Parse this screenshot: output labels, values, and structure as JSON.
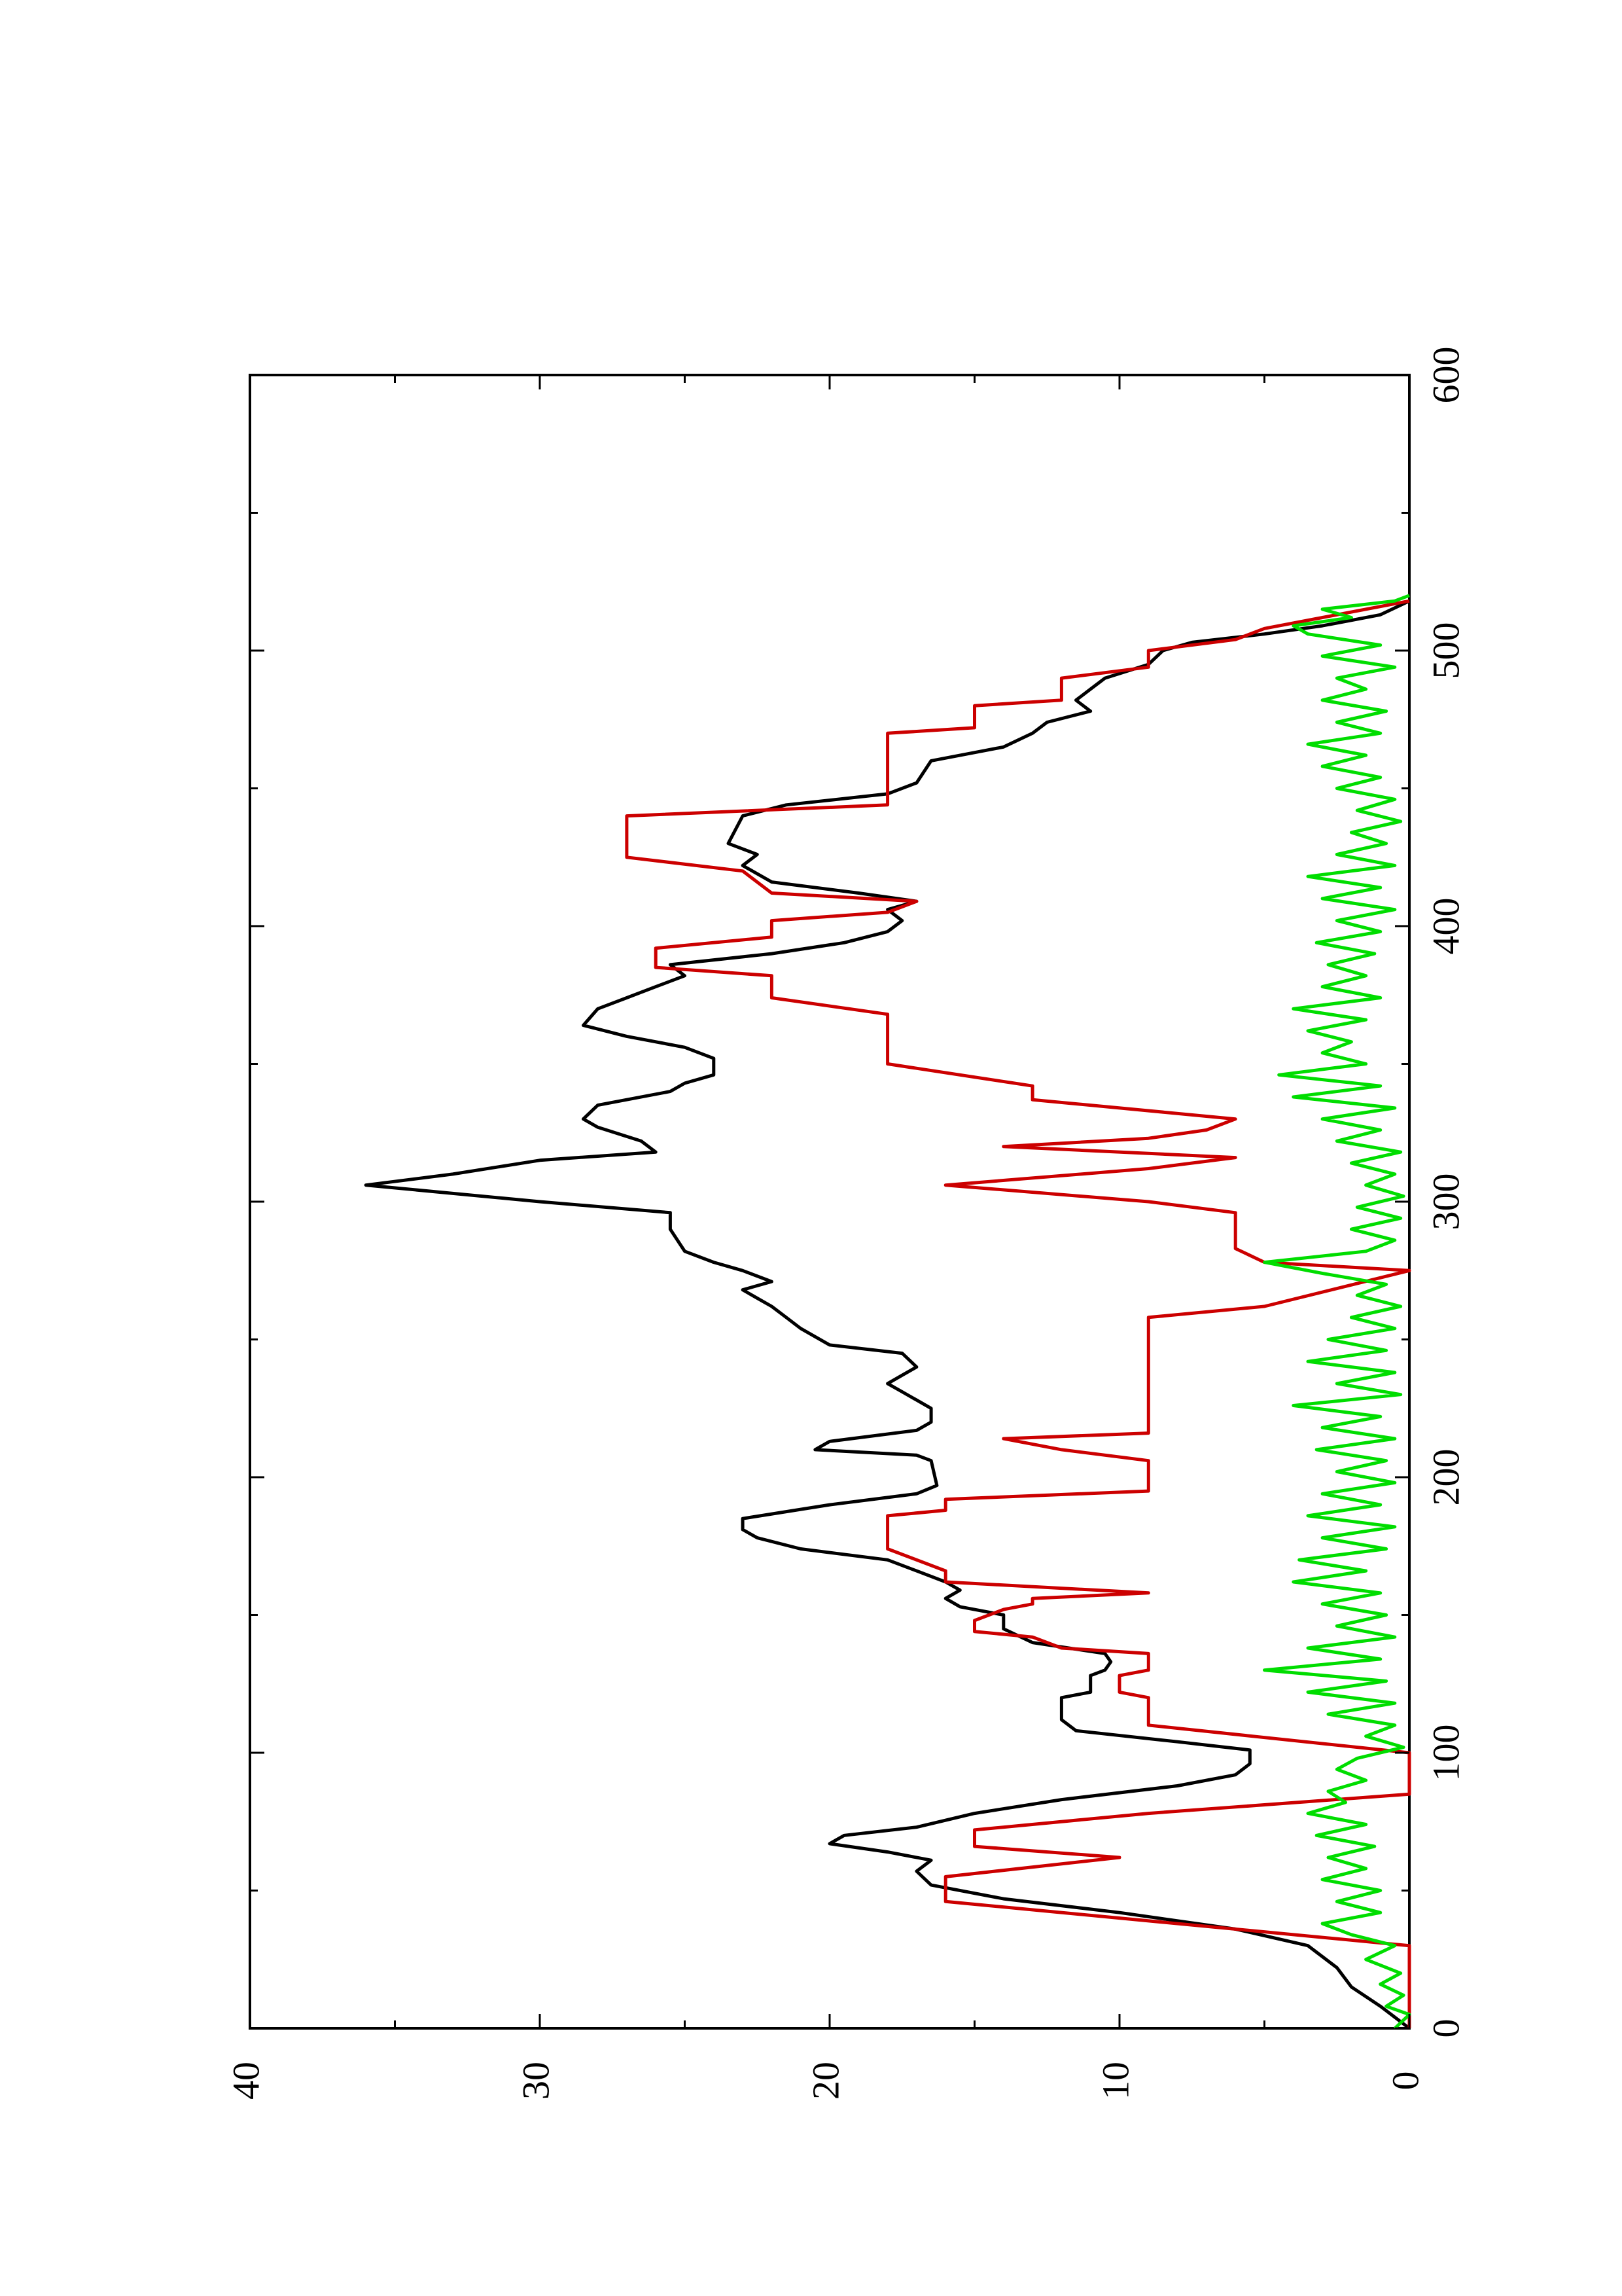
{
  "chart_data": {
    "type": "line",
    "orientation": "rotated-90-ccw",
    "title": "",
    "xlabel": "",
    "ylabel": "",
    "xlim": [
      0,
      600
    ],
    "ylim": [
      0,
      40
    ],
    "x_ticks": [
      0,
      100,
      200,
      300,
      400,
      500,
      600
    ],
    "x_minor_ticks": [
      50,
      150,
      250,
      350,
      450,
      550
    ],
    "y_ticks": [
      0,
      10,
      20,
      30,
      40
    ],
    "y_minor_ticks": [
      5,
      15,
      25,
      35
    ],
    "grid": false,
    "legend": "none",
    "series": [
      {
        "color": "#000000",
        "points": [
          [
            0,
            0
          ],
          [
            8,
            1
          ],
          [
            15,
            2
          ],
          [
            22,
            2.5
          ],
          [
            30,
            3.5
          ],
          [
            36,
            6
          ],
          [
            42,
            10
          ],
          [
            47,
            14
          ],
          [
            52,
            16.5
          ],
          [
            57,
            17
          ],
          [
            61,
            16.5
          ],
          [
            64,
            18
          ],
          [
            67,
            20
          ],
          [
            70,
            19.5
          ],
          [
            73,
            17
          ],
          [
            78,
            15
          ],
          [
            83,
            12
          ],
          [
            88,
            8
          ],
          [
            92,
            6
          ],
          [
            96,
            5.5
          ],
          [
            101,
            5.5
          ],
          [
            104,
            8
          ],
          [
            108,
            11.5
          ],
          [
            112,
            12
          ],
          [
            120,
            12
          ],
          [
            122,
            11
          ],
          [
            128,
            11
          ],
          [
            130,
            10.5
          ],
          [
            133,
            10.3
          ],
          [
            136,
            10.5
          ],
          [
            140,
            13
          ],
          [
            145,
            14
          ],
          [
            150,
            14
          ],
          [
            153,
            15.5
          ],
          [
            156,
            16
          ],
          [
            159,
            15.5
          ],
          [
            162,
            16
          ],
          [
            166,
            17
          ],
          [
            170,
            18
          ],
          [
            174,
            21
          ],
          [
            178,
            22.5
          ],
          [
            181,
            23
          ],
          [
            185,
            23
          ],
          [
            190,
            20
          ],
          [
            194,
            17
          ],
          [
            197,
            16.3
          ],
          [
            206,
            16.5
          ],
          [
            208,
            17
          ],
          [
            210,
            20.5
          ],
          [
            213,
            20
          ],
          [
            217,
            17
          ],
          [
            220,
            16.5
          ],
          [
            225,
            16.5
          ],
          [
            228,
            17
          ],
          [
            231,
            17.5
          ],
          [
            234,
            18
          ],
          [
            237,
            17.5
          ],
          [
            240,
            17
          ],
          [
            245,
            17.5
          ],
          [
            248,
            20
          ],
          [
            254,
            21
          ],
          [
            258,
            21.5
          ],
          [
            262,
            22
          ],
          [
            265,
            22.5
          ],
          [
            268,
            23
          ],
          [
            271,
            22
          ],
          [
            275,
            23
          ],
          [
            278,
            24
          ],
          [
            282,
            25
          ],
          [
            290,
            25.5
          ],
          [
            296,
            25.5
          ],
          [
            300,
            30
          ],
          [
            303,
            33
          ],
          [
            306,
            36
          ],
          [
            310,
            33
          ],
          [
            315,
            30
          ],
          [
            318,
            26
          ],
          [
            322,
            26.5
          ],
          [
            327,
            28
          ],
          [
            330,
            28.5
          ],
          [
            335,
            28
          ],
          [
            340,
            25.5
          ],
          [
            343,
            25
          ],
          [
            346,
            24
          ],
          [
            352,
            24
          ],
          [
            356,
            25
          ],
          [
            360,
            27
          ],
          [
            364,
            28.5
          ],
          [
            370,
            28
          ],
          [
            374,
            27
          ],
          [
            378,
            26
          ],
          [
            382,
            25
          ],
          [
            386,
            25.5
          ],
          [
            390,
            22
          ],
          [
            394,
            19.5
          ],
          [
            398,
            18
          ],
          [
            402,
            17.5
          ],
          [
            406,
            18
          ],
          [
            409,
            17
          ],
          [
            412,
            19
          ],
          [
            416,
            22
          ],
          [
            422,
            23
          ],
          [
            426,
            22.5
          ],
          [
            430,
            23.5
          ],
          [
            440,
            23
          ],
          [
            444,
            21.5
          ],
          [
            448,
            18
          ],
          [
            452,
            17
          ],
          [
            460,
            16.5
          ],
          [
            465,
            14
          ],
          [
            470,
            13
          ],
          [
            474,
            12.5
          ],
          [
            478,
            11
          ],
          [
            482,
            11.5
          ],
          [
            486,
            11
          ],
          [
            490,
            10.5
          ],
          [
            495,
            9
          ],
          [
            500,
            8.5
          ],
          [
            503,
            7.5
          ],
          [
            506,
            5
          ],
          [
            509,
            3
          ],
          [
            513,
            1
          ],
          [
            518,
            0
          ]
        ]
      },
      {
        "color": "#cc0000",
        "points": [
          [
            0,
            0
          ],
          [
            30,
            0
          ],
          [
            40,
            10
          ],
          [
            46,
            16
          ],
          [
            55,
            16
          ],
          [
            62,
            10
          ],
          [
            66,
            15
          ],
          [
            72,
            15
          ],
          [
            78,
            9
          ],
          [
            85,
            0
          ],
          [
            100,
            0
          ],
          [
            110,
            9
          ],
          [
            120,
            9
          ],
          [
            122,
            10
          ],
          [
            128,
            10
          ],
          [
            130,
            9
          ],
          [
            136,
            9
          ],
          [
            138,
            12
          ],
          [
            142,
            13
          ],
          [
            144,
            15
          ],
          [
            148,
            15
          ],
          [
            152,
            14
          ],
          [
            154,
            13
          ],
          [
            156,
            13
          ],
          [
            158,
            9
          ],
          [
            162,
            16
          ],
          [
            166,
            16
          ],
          [
            174,
            18
          ],
          [
            186,
            18
          ],
          [
            188,
            16
          ],
          [
            192,
            16
          ],
          [
            195,
            9
          ],
          [
            206,
            9
          ],
          [
            210,
            12
          ],
          [
            214,
            14
          ],
          [
            216,
            9
          ],
          [
            246,
            9
          ],
          [
            258,
            9
          ],
          [
            262,
            5
          ],
          [
            275,
            0
          ],
          [
            278,
            5
          ],
          [
            283,
            6
          ],
          [
            296,
            6
          ],
          [
            300,
            9
          ],
          [
            306,
            16
          ],
          [
            312,
            9
          ],
          [
            316,
            6
          ],
          [
            320,
            14
          ],
          [
            323,
            9
          ],
          [
            326,
            7
          ],
          [
            330,
            6
          ],
          [
            337,
            13
          ],
          [
            342,
            13
          ],
          [
            350,
            18
          ],
          [
            368,
            18
          ],
          [
            374,
            22
          ],
          [
            382,
            22
          ],
          [
            385,
            26
          ],
          [
            392,
            26
          ],
          [
            396,
            22
          ],
          [
            402,
            22
          ],
          [
            405,
            18
          ],
          [
            409,
            17
          ],
          [
            412,
            22
          ],
          [
            420,
            23
          ],
          [
            425,
            27
          ],
          [
            440,
            27
          ],
          [
            444,
            18
          ],
          [
            470,
            18
          ],
          [
            472,
            15
          ],
          [
            480,
            15
          ],
          [
            482,
            12
          ],
          [
            490,
            12
          ],
          [
            494,
            9
          ],
          [
            500,
            9
          ],
          [
            504,
            6
          ],
          [
            508,
            5
          ],
          [
            512,
            3
          ],
          [
            518,
            0
          ]
        ]
      },
      {
        "color": "#00dd00",
        "points": [
          [
            0,
            0.5
          ],
          [
            5,
            0
          ],
          [
            8,
            0.8
          ],
          [
            12,
            0.2
          ],
          [
            16,
            1
          ],
          [
            20,
            0.3
          ],
          [
            25,
            1.5
          ],
          [
            30,
            0.5
          ],
          [
            34,
            2
          ],
          [
            38,
            3
          ],
          [
            42,
            1
          ],
          [
            46,
            2.5
          ],
          [
            50,
            1
          ],
          [
            54,
            3
          ],
          [
            58,
            1.5
          ],
          [
            62,
            2.8
          ],
          [
            66,
            1.2
          ],
          [
            70,
            3.2
          ],
          [
            74,
            1.5
          ],
          [
            78,
            3.5
          ],
          [
            82,
            2.2
          ],
          [
            86,
            2.8
          ],
          [
            90,
            1.5
          ],
          [
            94,
            2.5
          ],
          [
            98,
            1.8
          ],
          [
            102,
            0.2
          ],
          [
            106,
            1.5
          ],
          [
            110,
            0.5
          ],
          [
            114,
            2.8
          ],
          [
            118,
            0.5
          ],
          [
            122,
            3.5
          ],
          [
            126,
            0.8
          ],
          [
            130,
            5
          ],
          [
            134,
            1
          ],
          [
            138,
            3.5
          ],
          [
            142,
            0.5
          ],
          [
            146,
            2.5
          ],
          [
            150,
            0.8
          ],
          [
            154,
            3
          ],
          [
            158,
            1
          ],
          [
            162,
            4
          ],
          [
            166,
            1.5
          ],
          [
            170,
            3.8
          ],
          [
            174,
            0.8
          ],
          [
            178,
            3
          ],
          [
            182,
            0.5
          ],
          [
            186,
            3.5
          ],
          [
            190,
            1
          ],
          [
            194,
            3
          ],
          [
            198,
            0.5
          ],
          [
            202,
            2.5
          ],
          [
            206,
            0.8
          ],
          [
            210,
            3.2
          ],
          [
            214,
            0.5
          ],
          [
            218,
            3
          ],
          [
            222,
            1
          ],
          [
            226,
            4
          ],
          [
            230,
            0.3
          ],
          [
            234,
            2.5
          ],
          [
            238,
            0.5
          ],
          [
            242,
            3.5
          ],
          [
            246,
            0.8
          ],
          [
            250,
            2.8
          ],
          [
            254,
            0.5
          ],
          [
            258,
            2
          ],
          [
            262,
            0.3
          ],
          [
            266,
            1.8
          ],
          [
            270,
            0.8
          ],
          [
            274,
            3
          ],
          [
            278,
            5
          ],
          [
            282,
            1.5
          ],
          [
            286,
            0.5
          ],
          [
            290,
            2
          ],
          [
            294,
            0.3
          ],
          [
            298,
            1.8
          ],
          [
            302,
            0.2
          ],
          [
            306,
            1.5
          ],
          [
            310,
            0.5
          ],
          [
            314,
            2
          ],
          [
            318,
            0.3
          ],
          [
            322,
            2.5
          ],
          [
            326,
            1
          ],
          [
            330,
            3
          ],
          [
            334,
            0.5
          ],
          [
            338,
            4
          ],
          [
            342,
            1
          ],
          [
            346,
            4.5
          ],
          [
            350,
            1.5
          ],
          [
            354,
            3
          ],
          [
            358,
            2
          ],
          [
            362,
            3.5
          ],
          [
            366,
            1.5
          ],
          [
            370,
            4
          ],
          [
            374,
            1
          ],
          [
            378,
            3
          ],
          [
            382,
            1.5
          ],
          [
            386,
            2.8
          ],
          [
            390,
            1.2
          ],
          [
            394,
            3.2
          ],
          [
            398,
            1
          ],
          [
            402,
            2.5
          ],
          [
            406,
            0.5
          ],
          [
            410,
            3
          ],
          [
            414,
            1
          ],
          [
            418,
            3.5
          ],
          [
            422,
            0.5
          ],
          [
            426,
            2.5
          ],
          [
            430,
            0.8
          ],
          [
            434,
            2
          ],
          [
            438,
            0.3
          ],
          [
            442,
            1.8
          ],
          [
            446,
            0.5
          ],
          [
            450,
            2.5
          ],
          [
            454,
            1
          ],
          [
            458,
            3
          ],
          [
            462,
            1.5
          ],
          [
            466,
            3.5
          ],
          [
            470,
            1
          ],
          [
            474,
            2.5
          ],
          [
            478,
            0.8
          ],
          [
            482,
            3
          ],
          [
            486,
            1.5
          ],
          [
            490,
            2.5
          ],
          [
            494,
            0.5
          ],
          [
            498,
            3
          ],
          [
            502,
            1
          ],
          [
            506,
            3.5
          ],
          [
            509,
            4
          ],
          [
            512,
            2
          ],
          [
            515,
            3
          ],
          [
            518,
            0.5
          ],
          [
            520,
            0
          ]
        ]
      }
    ]
  }
}
